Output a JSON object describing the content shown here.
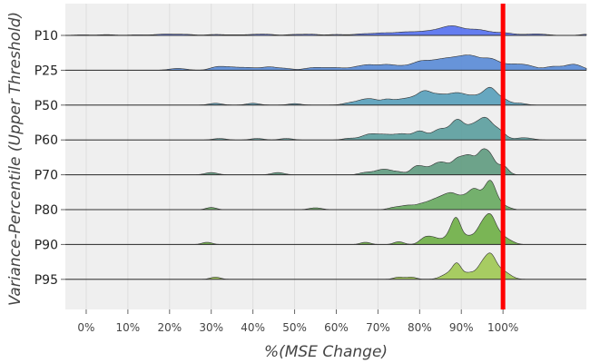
{
  "chart_data": {
    "type": "area",
    "subtype": "ridgeline",
    "title": "",
    "xlabel": "%(MSE Change)",
    "ylabel": "Variance-Percentile (Upper Threshold)",
    "xlim": [
      -5,
      120
    ],
    "xticks": [
      0,
      10,
      20,
      30,
      40,
      50,
      60,
      70,
      80,
      90,
      100
    ],
    "xtick_labels": [
      "0%",
      "10%",
      "20%",
      "30%",
      "40%",
      "50%",
      "60%",
      "70%",
      "80%",
      "90%",
      "100%"
    ],
    "grid": true,
    "reference_line": {
      "x": 100,
      "color": "#ff0000"
    },
    "background": "#efefef",
    "series": [
      {
        "label": "P10",
        "color": "#5470f0",
        "peaks": [
          [
            -1,
            0.03,
            2
          ],
          [
            5,
            0.04,
            2
          ],
          [
            12,
            0.03,
            2
          ],
          [
            19,
            0.07,
            2.5
          ],
          [
            24,
            0.05,
            2
          ],
          [
            31,
            0.05,
            2
          ],
          [
            36,
            0.03,
            2
          ],
          [
            41,
            0.06,
            2
          ],
          [
            44,
            0.04,
            1.5
          ],
          [
            50,
            0.05,
            2
          ],
          [
            54,
            0.06,
            1.8
          ],
          [
            60,
            0.05,
            2
          ],
          [
            66,
            0.07,
            2
          ],
          [
            71,
            0.12,
            2.5
          ],
          [
            76,
            0.08,
            2
          ],
          [
            83,
            0.25,
            5
          ],
          [
            88,
            0.36,
            2.5
          ],
          [
            94,
            0.28,
            2.5
          ],
          [
            100,
            0.14,
            2.5
          ],
          [
            108,
            0.08,
            2.5
          ],
          [
            120,
            0.06,
            1.5
          ]
        ]
      },
      {
        "label": "P25",
        "color": "#588ad6",
        "peaks": [
          [
            22,
            0.1,
            2
          ],
          [
            31,
            0.1,
            1.5
          ],
          [
            34,
            0.18,
            2.5
          ],
          [
            39,
            0.12,
            2
          ],
          [
            44,
            0.18,
            2
          ],
          [
            48,
            0.08,
            1.5
          ],
          [
            55,
            0.15,
            2.5
          ],
          [
            60,
            0.12,
            2
          ],
          [
            65,
            0.16,
            2
          ],
          [
            68,
            0.22,
            1.8
          ],
          [
            72,
            0.28,
            2
          ],
          [
            76,
            0.18,
            2
          ],
          [
            80,
            0.35,
            2
          ],
          [
            85,
            0.55,
            3
          ],
          [
            90,
            0.52,
            2.5
          ],
          [
            93,
            0.45,
            2
          ],
          [
            97,
            0.55,
            2
          ],
          [
            102,
            0.3,
            2.5
          ],
          [
            106,
            0.2,
            2
          ],
          [
            112,
            0.2,
            2
          ],
          [
            117,
            0.32,
            2
          ]
        ]
      },
      {
        "label": "P50",
        "color": "#569eba",
        "peaks": [
          [
            31,
            0.1,
            1.5
          ],
          [
            40,
            0.1,
            1.5
          ],
          [
            50,
            0.08,
            1.5
          ],
          [
            64,
            0.15,
            2
          ],
          [
            67,
            0.25,
            1.5
          ],
          [
            69,
            0.18,
            1.2
          ],
          [
            72,
            0.3,
            1.5
          ],
          [
            75,
            0.2,
            1.5
          ],
          [
            78,
            0.35,
            1.8
          ],
          [
            81,
            0.55,
            1.5
          ],
          [
            84,
            0.48,
            2
          ],
          [
            89,
            0.65,
            2.5
          ],
          [
            94,
            0.4,
            2
          ],
          [
            97,
            0.8,
            1.5
          ],
          [
            100,
            0.3,
            1.5
          ],
          [
            104,
            0.1,
            1.5
          ]
        ]
      },
      {
        "label": "P60",
        "color": "#5a9d9d",
        "peaks": [
          [
            32,
            0.08,
            1.5
          ],
          [
            41,
            0.08,
            1.5
          ],
          [
            48,
            0.08,
            1.5
          ],
          [
            63,
            0.08,
            1.5
          ],
          [
            68,
            0.3,
            2
          ],
          [
            72,
            0.25,
            2
          ],
          [
            76,
            0.3,
            1.8
          ],
          [
            80,
            0.45,
            1.5
          ],
          [
            85,
            0.6,
            2
          ],
          [
            89,
            0.95,
            1.5
          ],
          [
            93,
            0.8,
            2
          ],
          [
            96,
            0.9,
            1.5
          ],
          [
            99,
            0.5,
            1.5
          ],
          [
            105,
            0.12,
            2
          ]
        ]
      },
      {
        "label": "P70",
        "color": "#5e9a7e",
        "peaks": [
          [
            30,
            0.12,
            1.5
          ],
          [
            46,
            0.12,
            1.5
          ],
          [
            67,
            0.12,
            1.5
          ],
          [
            70,
            0.15,
            1.5
          ],
          [
            72,
            0.22,
            1.5
          ],
          [
            75,
            0.15,
            1.5
          ],
          [
            79,
            0.4,
            1.2
          ],
          [
            81,
            0.3,
            1.2
          ],
          [
            84,
            0.55,
            1.5
          ],
          [
            86,
            0.35,
            1.2
          ],
          [
            89,
            0.8,
            1.5
          ],
          [
            92,
            0.95,
            1.5
          ],
          [
            95,
            1.05,
            1.2
          ],
          [
            97,
            0.9,
            1.2
          ],
          [
            100,
            0.5,
            1.2
          ]
        ]
      },
      {
        "label": "P80",
        "color": "#66a85e",
        "peaks": [
          [
            30,
            0.12,
            1.2
          ],
          [
            55,
            0.1,
            1.5
          ],
          [
            74,
            0.12,
            1.5
          ],
          [
            77,
            0.2,
            1.5
          ],
          [
            80,
            0.15,
            1.5
          ],
          [
            84,
            0.55,
            2.5
          ],
          [
            88,
            0.75,
            2
          ],
          [
            91,
            0.4,
            1.2
          ],
          [
            93,
            0.9,
            1.2
          ],
          [
            95,
            0.55,
            1.2
          ],
          [
            97,
            1.4,
            1.2
          ],
          [
            99,
            0.3,
            1.2
          ],
          [
            101,
            0.1,
            1.2
          ]
        ]
      },
      {
        "label": "P90",
        "color": "#6dae44",
        "peaks": [
          [
            29,
            0.12,
            1.2
          ],
          [
            67,
            0.12,
            1.2
          ],
          [
            75,
            0.15,
            1.2
          ],
          [
            81,
            0.25,
            1.2
          ],
          [
            83,
            0.35,
            1.5
          ],
          [
            86,
            0.2,
            1.5
          ],
          [
            88,
            0.7,
            1.2
          ],
          [
            89,
            0.85,
            1.0
          ],
          [
            91,
            0.35,
            1.2
          ],
          [
            93,
            0.3,
            1.2
          ],
          [
            95,
            0.9,
            1.2
          ],
          [
            97,
            1.35,
            1.2
          ],
          [
            99,
            0.4,
            1.2
          ],
          [
            101,
            0.25,
            1.5
          ]
        ]
      },
      {
        "label": "P95",
        "color": "#9fc852",
        "peaks": [
          [
            31,
            0.12,
            1.2
          ],
          [
            75,
            0.12,
            1.2
          ],
          [
            78,
            0.12,
            1.2
          ],
          [
            86,
            0.15,
            1.5
          ],
          [
            88,
            0.3,
            1.5
          ],
          [
            89,
            0.6,
            1.0
          ],
          [
            92,
            0.35,
            1.5
          ],
          [
            95,
            0.7,
            1.2
          ],
          [
            97,
            1.1,
            1.2
          ],
          [
            99,
            0.4,
            1.5
          ],
          [
            101,
            0.2,
            1.5
          ]
        ]
      }
    ]
  }
}
